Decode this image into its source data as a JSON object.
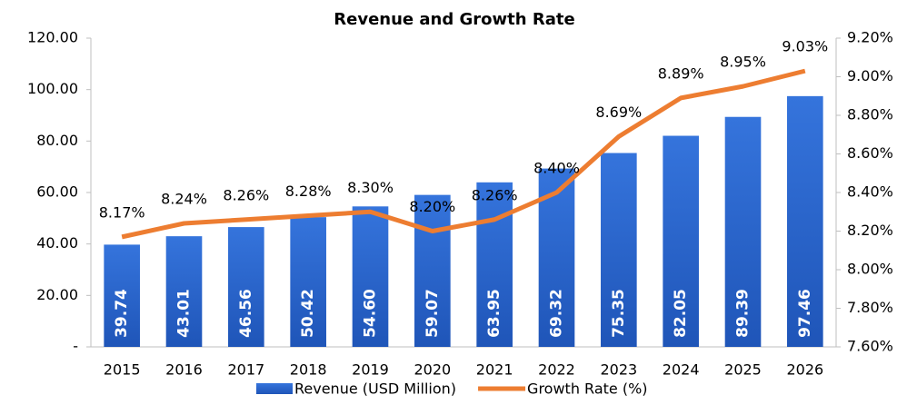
{
  "chart_data": {
    "type": "bar",
    "title": "Revenue and Growth Rate",
    "categories": [
      "2015",
      "2016",
      "2017",
      "2018",
      "2019",
      "2020",
      "2021",
      "2022",
      "2023",
      "2024",
      "2025",
      "2026"
    ],
    "series": [
      {
        "name": "Revenue (USD Million)",
        "type": "bar",
        "color": "#2e67d1",
        "values": [
          39.74,
          43.01,
          46.56,
          50.42,
          54.6,
          59.07,
          63.95,
          69.32,
          75.35,
          82.05,
          89.39,
          97.46
        ],
        "value_labels": [
          "39.74",
          "43.01",
          "46.56",
          "50.42",
          "54.60",
          "59.07",
          "63.95",
          "69.32",
          "75.35",
          "82.05",
          "89.39",
          "97.46"
        ]
      },
      {
        "name": "Growth Rate (%)",
        "type": "line",
        "axis": "y2",
        "color": "#ed7d31",
        "values": [
          8.17,
          8.24,
          8.26,
          8.28,
          8.3,
          8.2,
          8.26,
          8.4,
          8.69,
          8.89,
          8.95,
          9.03
        ],
        "value_labels": [
          "8.17%",
          "8.24%",
          "8.26%",
          "8.28%",
          "8.30%",
          "8.20%",
          "8.26%",
          "8.40%",
          "8.69%",
          "8.89%",
          "8.95%",
          "9.03%"
        ]
      }
    ],
    "ylim": [
      0,
      120
    ],
    "yticks": [
      {
        "value": 0,
        "label": "-"
      },
      {
        "value": 20,
        "label": "20.00"
      },
      {
        "value": 40,
        "label": "40.00"
      },
      {
        "value": 60,
        "label": "60.00"
      },
      {
        "value": 80,
        "label": "80.00"
      },
      {
        "value": 100,
        "label": "100.00"
      },
      {
        "value": 120,
        "label": "120.00"
      }
    ],
    "y2lim": [
      7.6,
      9.2
    ],
    "y2ticks": [
      {
        "value": 7.6,
        "label": "7.60%"
      },
      {
        "value": 7.8,
        "label": "7.80%"
      },
      {
        "value": 8.0,
        "label": "8.00%"
      },
      {
        "value": 8.2,
        "label": "8.20%"
      },
      {
        "value": 8.4,
        "label": "8.40%"
      },
      {
        "value": 8.6,
        "label": "8.60%"
      },
      {
        "value": 8.8,
        "label": "8.80%"
      },
      {
        "value": 9.0,
        "label": "9.00%"
      },
      {
        "value": 9.2,
        "label": "9.20%"
      }
    ],
    "grid": false
  }
}
